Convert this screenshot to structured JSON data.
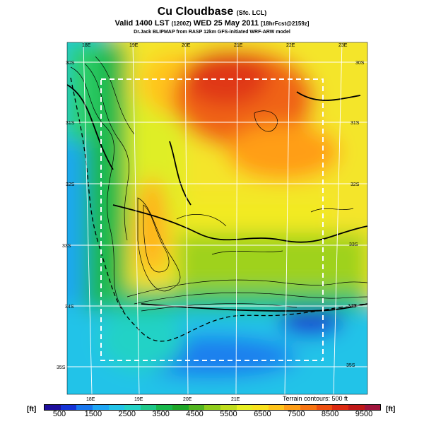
{
  "header": {
    "title": "Cu Cloudbase",
    "title_suffix": "(Sfc. LCL)",
    "valid_prefix": "Valid",
    "valid_time": "1400 LST",
    "valid_utc": "(1200Z)",
    "valid_date": "WED 25 May 2011",
    "forecast_info": "[18hrFcst@2159z]",
    "credit": "Dr.Jack BLIPMAP from RASP 12km GFS-initiated WRF-ARW model"
  },
  "map": {
    "lon_labels_top": [
      "18E",
      "19E",
      "20E",
      "21E",
      "22E",
      "23E"
    ],
    "lon_labels_bottom": [
      "18E",
      "19E",
      "20E",
      "21E"
    ],
    "lat_labels_left": [
      "30S",
      "31S",
      "32S",
      "33S",
      "34S",
      "35S"
    ],
    "lat_labels_right": [
      "30S",
      "31S",
      "32S",
      "33S",
      "34S",
      "35S"
    ],
    "terrain_note": "Terrain contours: 500 ft"
  },
  "colorbar": {
    "unit_left": "[ft]",
    "unit_right": "[ft]",
    "tick_labels": [
      "500",
      "1500",
      "2500",
      "3500",
      "4500",
      "5500",
      "6500",
      "7500",
      "8500",
      "9500"
    ],
    "colors": [
      "#1e0f9c",
      "#1533d6",
      "#1877ee",
      "#1ea6f4",
      "#22c3e8",
      "#24d2c6",
      "#1ec88a",
      "#18b84c",
      "#1ea628",
      "#52b520",
      "#8fcc1c",
      "#c0dd1e",
      "#e7ef22",
      "#f8e21e",
      "#ffc41a",
      "#ff9e16",
      "#f87412",
      "#ee4f10",
      "#dc2a12",
      "#c01818",
      "#a0143c"
    ]
  }
}
